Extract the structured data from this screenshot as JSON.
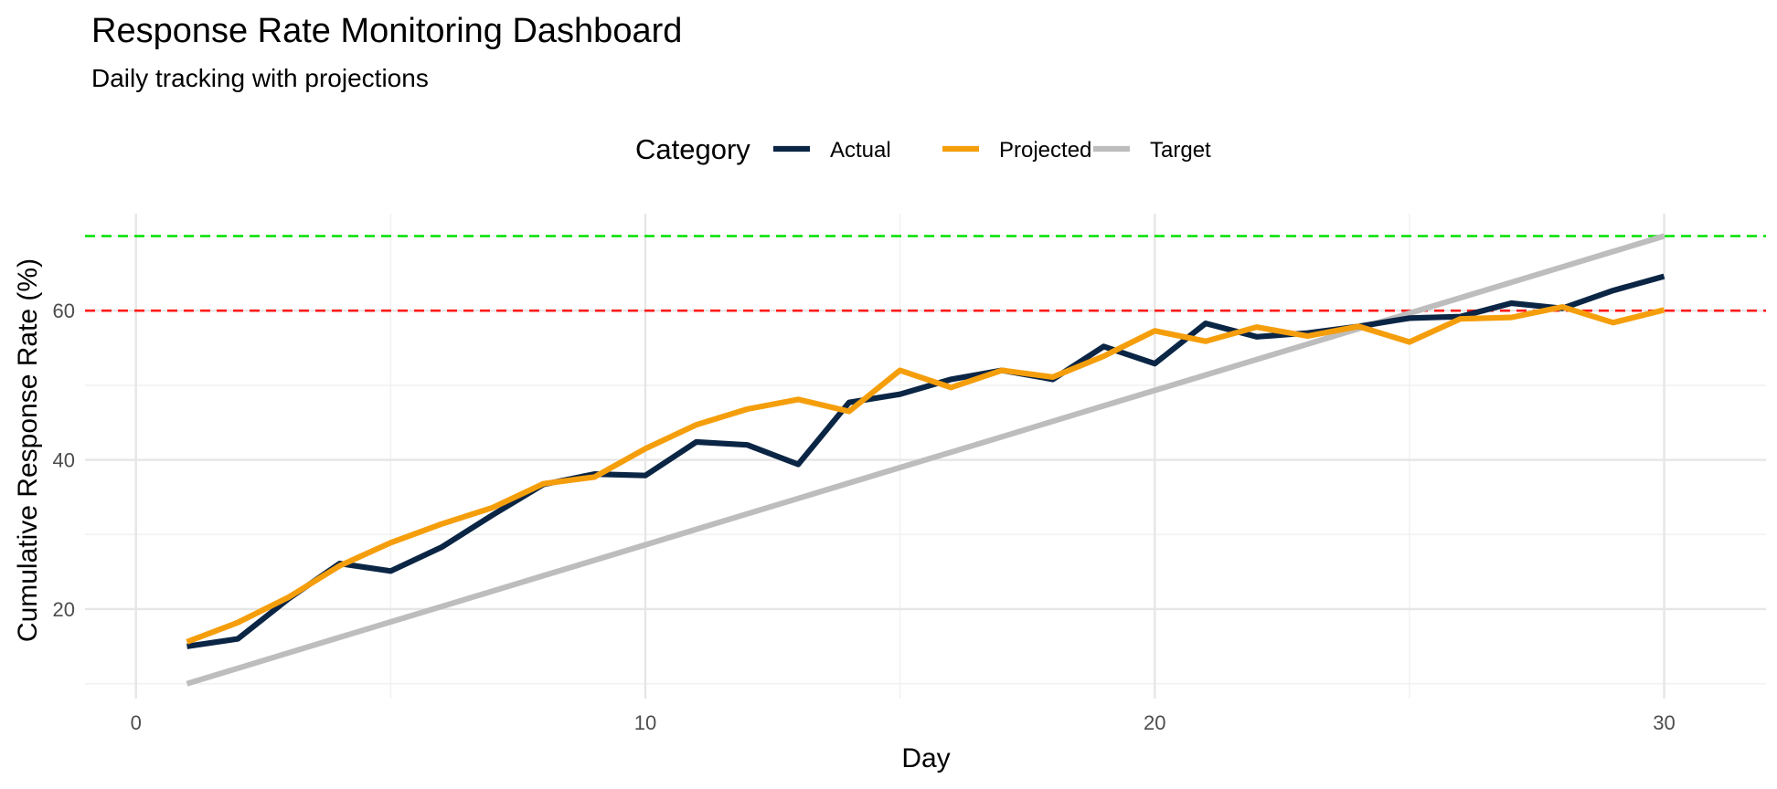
{
  "chart_data": {
    "type": "line",
    "title": "Response Rate Monitoring Dashboard",
    "subtitle": "Daily tracking with projections",
    "xlabel": "Day",
    "ylabel": "Cumulative Response Rate (%)",
    "xlim": [
      -1,
      32
    ],
    "ylim": [
      8,
      73
    ],
    "x_ticks": [
      0,
      10,
      20,
      30
    ],
    "y_ticks": [
      20,
      40,
      60
    ],
    "grid": true,
    "legend": {
      "title": "Category",
      "position": "top"
    },
    "x": [
      1,
      2,
      3,
      4,
      5,
      6,
      7,
      8,
      9,
      10,
      11,
      12,
      13,
      14,
      15,
      16,
      17,
      18,
      19,
      20,
      21,
      22,
      23,
      24,
      25,
      26,
      27,
      28,
      29,
      30
    ],
    "series": [
      {
        "name": "Actual",
        "color": "#0b2545",
        "values": [
          15.0,
          16.0,
          21.4,
          26.1,
          25.1,
          28.3,
          32.6,
          36.7,
          38.1,
          37.9,
          42.4,
          42.0,
          39.4,
          47.7,
          48.8,
          50.8,
          52.0,
          50.8,
          55.2,
          52.9,
          58.3,
          56.5,
          57.0,
          57.9,
          59.0,
          59.2,
          61.0,
          60.3,
          62.7,
          64.6
        ]
      },
      {
        "name": "Projected",
        "color": "#f59e0b",
        "values": [
          15.6,
          18.2,
          21.6,
          25.8,
          28.9,
          31.4,
          33.6,
          36.8,
          37.7,
          41.5,
          44.7,
          46.8,
          48.1,
          46.5,
          52.0,
          49.7,
          52.0,
          51.1,
          53.9,
          57.3,
          55.9,
          57.8,
          56.6,
          57.9,
          55.8,
          58.9,
          59.1,
          60.5,
          58.4,
          60.1
        ]
      },
      {
        "name": "Target",
        "color": "#bdbdbd",
        "values": [
          10.0,
          12.07,
          14.14,
          16.21,
          18.28,
          20.34,
          22.41,
          24.48,
          26.55,
          28.62,
          30.69,
          32.76,
          34.83,
          36.9,
          38.97,
          41.03,
          43.1,
          45.17,
          47.24,
          49.31,
          51.38,
          53.45,
          55.52,
          57.59,
          59.66,
          61.72,
          63.79,
          65.86,
          67.93,
          70.0
        ]
      }
    ],
    "reference_lines": [
      {
        "y": 70,
        "color": "#00e000",
        "style": "dashed"
      },
      {
        "y": 60,
        "color": "#ff1a1a",
        "style": "dashed"
      }
    ]
  }
}
